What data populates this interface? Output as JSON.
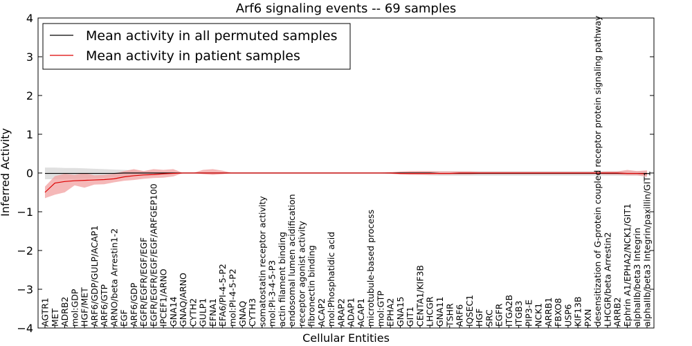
{
  "chart_data": {
    "type": "line",
    "title": "Arf6 signaling events -- 69 samples",
    "xlabel": "Cellular Entities",
    "ylabel": "Inferred Activity",
    "ylim": [
      -4,
      4
    ],
    "yticks": [
      -4,
      -3,
      -2,
      -1,
      0,
      1,
      2,
      3,
      4
    ],
    "ytick_labels": [
      "−4",
      "−3",
      "−2",
      "−1",
      "0",
      "1",
      "2",
      "3",
      "4"
    ],
    "grid": false,
    "legend_position": "top-left",
    "categories": [
      "AGTR1",
      "MET",
      "ADRB2",
      "mol:GDP",
      "HGF/MET",
      "ARF6/GDP/GULP/ACAP1",
      "ARF6/GTP",
      "ARNO/beta Arrestin1-2",
      "EGF",
      "ARF6/GDP",
      "EGFR/EGFR/EGF/EGF",
      "EGFR/EGFR/EGF/EGF/ARFGEP100",
      "IPCEF1/ARNO",
      "GNA14",
      "GNAQ/ARNO",
      "CYTH2",
      "GULP1",
      "EFNA1",
      "EFA6/PI-4-5-P2",
      "mol:PI-4-5-P2",
      "GNAQ",
      "CYTH3",
      "somatostatin receptor activity",
      "mol:PI-3-4-5-P3",
      "actin filament binding",
      "endosomal lumen acidification",
      "receptor agonist activity",
      "fibronectin binding",
      "ACAP2",
      "mol:Phosphatidic acid",
      "ARAP2",
      "ADAP1",
      "ACAP1",
      "microtubule-based process",
      "mol:GTP",
      "EPHA2",
      "GNA15",
      "GIT1",
      "CENTA1/KIF3B",
      "LHCGR",
      "GNA11",
      "TSHR",
      "ARF6",
      "IQSEC1",
      "HGF",
      "SRC",
      "EGFR",
      "ITGA2B",
      "ITGB3",
      "PIP3-E",
      "NCK1",
      "ARRB1",
      "FBXO8",
      "USP6",
      "KIF13B",
      "PXN",
      "desensitization of G-protein coupled receptor protein signaling pathway",
      "LHCGR/beta Arrestin2",
      "ARRB2",
      "Ephrin A1/EPHA2/NCK1/GIT1",
      "alphaIIb/beta3 Integrin",
      "alphaIIb/beta3 Integrin/paxillin/GIT1"
    ],
    "series": [
      {
        "name": "Mean activity in all permuted samples",
        "color": "#000000",
        "band_color": "#bbbbbb",
        "values": [
          -0.01,
          -0.01,
          -0.01,
          -0.01,
          -0.01,
          -0.01,
          -0.01,
          -0.01,
          0,
          0,
          0,
          0,
          0,
          0,
          0,
          0,
          0,
          0,
          0,
          0,
          0,
          0,
          0,
          0,
          0,
          0,
          0,
          0,
          0,
          0,
          0,
          0,
          0,
          0,
          0,
          0,
          0,
          0,
          0,
          0,
          -0.01,
          -0.01,
          -0.01,
          -0.01,
          -0.01,
          -0.01,
          -0.01,
          -0.01,
          -0.01,
          -0.01,
          -0.01,
          -0.01,
          -0.01,
          -0.01,
          -0.01,
          -0.01,
          -0.01,
          -0.01,
          -0.01,
          -0.01,
          -0.01,
          -0.01
        ],
        "lower": [
          -0.16,
          -0.16,
          -0.15,
          -0.15,
          -0.14,
          -0.13,
          -0.12,
          -0.11,
          -0.09,
          -0.07,
          -0.05,
          -0.03,
          -0.02,
          -0.01,
          0,
          0,
          0,
          0,
          0,
          0,
          0,
          0,
          0,
          0,
          0,
          0,
          0,
          0,
          0,
          0,
          0,
          0,
          0,
          0,
          -0.01,
          -0.02,
          -0.03,
          -0.04,
          -0.05,
          -0.06,
          -0.07,
          -0.07,
          -0.07,
          -0.07,
          -0.07,
          -0.07,
          -0.07,
          -0.07,
          -0.07,
          -0.07,
          -0.07,
          -0.07,
          -0.07,
          -0.07,
          -0.07,
          -0.07,
          -0.07,
          -0.07,
          -0.07,
          -0.07,
          -0.07,
          -0.07
        ],
        "upper": [
          0.14,
          0.14,
          0.13,
          0.13,
          0.12,
          0.11,
          0.1,
          0.09,
          0.08,
          0.07,
          0.05,
          0.03,
          0.02,
          0.01,
          0,
          0,
          0,
          0,
          0,
          0,
          0,
          0,
          0,
          0,
          0,
          0,
          0,
          0,
          0,
          0,
          0,
          0,
          0,
          0,
          0.01,
          0.02,
          0.03,
          0.04,
          0.05,
          0.05,
          0.05,
          0.05,
          0.05,
          0.05,
          0.05,
          0.05,
          0.05,
          0.05,
          0.05,
          0.05,
          0.05,
          0.05,
          0.05,
          0.05,
          0.05,
          0.05,
          0.05,
          0.05,
          0.05,
          0.05,
          0.05,
          0.05
        ]
      },
      {
        "name": "Mean activity in patient samples",
        "color": "#dd0000",
        "band_color": "#f2a0a0",
        "values": [
          -0.5,
          -0.26,
          -0.22,
          -0.2,
          -0.19,
          -0.18,
          -0.17,
          -0.15,
          -0.1,
          -0.07,
          -0.05,
          -0.04,
          -0.02,
          -0.01,
          0,
          0,
          0,
          0,
          0,
          0,
          0,
          0,
          0,
          0,
          0,
          0,
          0,
          0,
          0,
          0,
          0,
          0,
          0,
          0,
          0,
          0,
          -0.01,
          -0.01,
          -0.01,
          -0.01,
          -0.01,
          -0.01,
          0,
          0,
          0,
          0,
          0,
          0,
          0,
          0,
          0,
          0,
          0,
          0,
          0,
          0,
          0,
          0,
          0,
          -0.01,
          -0.01,
          -0.02
        ],
        "lower": [
          -0.65,
          -0.56,
          -0.5,
          -0.32,
          -0.38,
          -0.3,
          -0.29,
          -0.24,
          -0.2,
          -0.18,
          -0.15,
          -0.13,
          -0.12,
          -0.09,
          0,
          0,
          -0.03,
          -0.05,
          -0.03,
          0,
          0,
          0,
          0,
          0,
          0,
          0,
          0,
          0,
          0,
          0,
          0,
          0,
          0,
          0,
          0,
          -0.02,
          -0.04,
          -0.05,
          -0.05,
          -0.05,
          -0.04,
          -0.04,
          -0.04,
          -0.04,
          -0.03,
          -0.03,
          -0.03,
          -0.03,
          -0.03,
          -0.03,
          -0.03,
          -0.03,
          -0.03,
          -0.03,
          -0.03,
          -0.03,
          -0.03,
          -0.04,
          -0.04,
          -0.06,
          -0.06,
          -0.1
        ],
        "upper": [
          -0.35,
          -0.08,
          -0.02,
          -0.05,
          0.0,
          -0.06,
          -0.05,
          -0.02,
          0.05,
          0.1,
          0.05,
          0.1,
          0.08,
          0.1,
          0,
          0,
          0.08,
          0.1,
          0.06,
          0,
          0,
          0,
          0,
          0,
          0,
          0,
          0,
          0,
          0,
          0,
          0,
          0,
          0,
          0,
          0,
          0.02,
          0.04,
          0.05,
          0.05,
          0.05,
          0.04,
          0.04,
          0.04,
          0.04,
          0.03,
          0.03,
          0.03,
          0.03,
          0.03,
          0.03,
          0.03,
          0.03,
          0.03,
          0.03,
          0.03,
          0.03,
          0.03,
          0.04,
          0.04,
          0.08,
          0.05,
          0.07
        ]
      }
    ]
  }
}
